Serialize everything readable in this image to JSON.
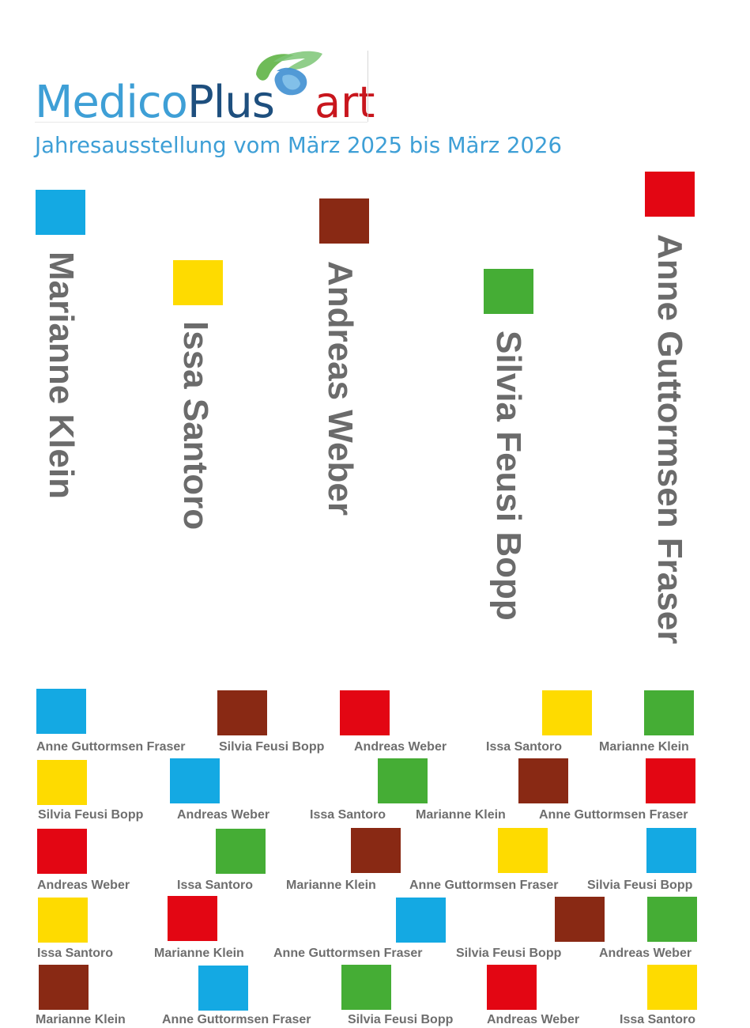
{
  "logo": {
    "brand_medico": "Medico",
    "brand_plus": "Plus",
    "brand_art": "art",
    "swoosh_icon": "leaf-swoosh-icon"
  },
  "subtitle": "Jahresausstellung vom März 2025 bis März 2026",
  "colors": {
    "blue": "#14a9e3",
    "yellow": "#fedb00",
    "brown": "#892914",
    "green": "#45ad35",
    "red": "#e30613",
    "name_gray": "#6b6b6b",
    "brand_light_blue": "#3e9fd6",
    "brand_dark_blue": "#1e4f7e",
    "brand_red": "#c8161d"
  },
  "artists": [
    {
      "name": "Marianne Klein",
      "color": "blue"
    },
    {
      "name": "Issa Santoro",
      "color": "yellow"
    },
    {
      "name": "Andreas Weber",
      "color": "brown"
    },
    {
      "name": "Silvia Feusi Bopp",
      "color": "green"
    },
    {
      "name": "Anne Guttormsen Fraser",
      "color": "red"
    }
  ],
  "grid": [
    [
      {
        "name": "Anne Guttormsen Fraser",
        "color": "blue"
      },
      {
        "name": "Silvia Feusi Bopp",
        "color": "brown"
      },
      {
        "name": "Andreas Weber",
        "color": "red"
      },
      {
        "name": "Issa Santoro",
        "color": "yellow"
      },
      {
        "name": "Marianne Klein",
        "color": "green"
      }
    ],
    [
      {
        "name": "Silvia Feusi Bopp",
        "color": "yellow"
      },
      {
        "name": "Andreas Weber",
        "color": "blue"
      },
      {
        "name": "Issa Santoro",
        "color": "green"
      },
      {
        "name": "Marianne Klein",
        "color": "brown"
      },
      {
        "name": "Anne Guttormsen Fraser",
        "color": "red"
      }
    ],
    [
      {
        "name": "Andreas Weber",
        "color": "red"
      },
      {
        "name": "Issa Santoro",
        "color": "green"
      },
      {
        "name": "Marianne Klein",
        "color": "brown"
      },
      {
        "name": "Anne Guttormsen Fraser",
        "color": "yellow"
      },
      {
        "name": "Silvia Feusi Bopp",
        "color": "blue"
      }
    ],
    [
      {
        "name": "Issa Santoro",
        "color": "yellow"
      },
      {
        "name": "Marianne Klein",
        "color": "red"
      },
      {
        "name": "Anne Guttormsen Fraser",
        "color": "blue"
      },
      {
        "name": "Silvia Feusi Bopp",
        "color": "brown"
      },
      {
        "name": "Andreas Weber",
        "color": "green"
      }
    ],
    [
      {
        "name": "Marianne Klein",
        "color": "brown"
      },
      {
        "name": "Anne Guttormsen Fraser",
        "color": "blue"
      },
      {
        "name": "Silvia Feusi Bopp",
        "color": "green"
      },
      {
        "name": "Andreas Weber",
        "color": "red"
      },
      {
        "name": "Issa Santoro",
        "color": "yellow"
      }
    ]
  ]
}
